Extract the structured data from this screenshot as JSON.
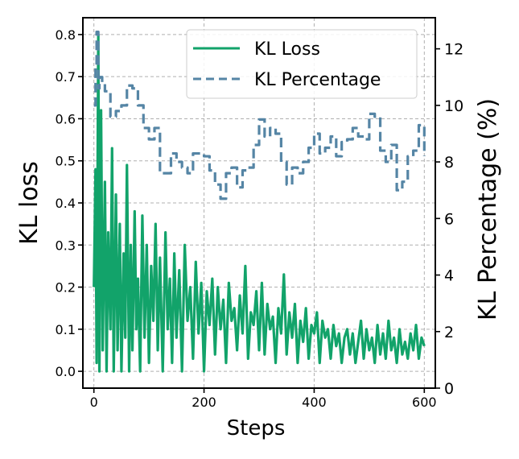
{
  "chart_data": {
    "type": "line",
    "xlabel": "Steps",
    "ylabel": "KL loss",
    "y2label": "KL Percentage (%)",
    "xlim": [
      -20,
      620
    ],
    "ylim": [
      -0.04,
      0.84
    ],
    "y2lim": [
      0,
      13.1
    ],
    "xticks": [
      0,
      200,
      400,
      600
    ],
    "yticks": [
      "0.0",
      "0.1",
      "0.2",
      "0.3",
      "0.4",
      "0.5",
      "0.6",
      "0.7",
      "0.8"
    ],
    "y2ticks": [
      0,
      2,
      4,
      6,
      8,
      10,
      12
    ],
    "grid": true,
    "legend_location": "top-right",
    "series": [
      {
        "name": "KL Loss",
        "axis": "left",
        "color": "#12a36a",
        "style": "solid",
        "x": [
          0,
          3,
          5,
          8,
          10,
          13,
          16,
          20,
          23,
          26,
          30,
          33,
          36,
          40,
          43,
          47,
          50,
          54,
          57,
          60,
          64,
          67,
          70,
          74,
          77,
          80,
          84,
          88,
          92,
          96,
          100,
          104,
          108,
          112,
          116,
          120,
          125,
          130,
          134,
          138,
          142,
          146,
          150,
          155,
          160,
          165,
          170,
          175,
          180,
          185,
          190,
          195,
          200,
          205,
          210,
          215,
          220,
          225,
          230,
          235,
          240,
          245,
          250,
          255,
          260,
          265,
          270,
          275,
          280,
          285,
          290,
          295,
          300,
          305,
          310,
          315,
          320,
          325,
          330,
          335,
          340,
          345,
          350,
          355,
          360,
          365,
          370,
          375,
          380,
          385,
          390,
          395,
          400,
          405,
          410,
          415,
          420,
          425,
          430,
          435,
          440,
          445,
          450,
          455,
          460,
          465,
          470,
          475,
          480,
          485,
          490,
          495,
          500,
          505,
          510,
          515,
          520,
          525,
          530,
          535,
          540,
          545,
          550,
          555,
          560,
          565,
          570,
          575,
          580,
          585,
          590,
          595,
          600
        ],
        "values": [
          0.2,
          0.48,
          0.02,
          0.8,
          0.0,
          0.62,
          0.05,
          0.45,
          0.0,
          0.33,
          0.1,
          0.53,
          0.0,
          0.42,
          0.05,
          0.35,
          0.0,
          0.28,
          0.08,
          0.49,
          0.0,
          0.3,
          0.05,
          0.38,
          0.1,
          0.22,
          0.0,
          0.37,
          0.08,
          0.3,
          0.02,
          0.25,
          0.12,
          0.35,
          0.05,
          0.27,
          0.0,
          0.33,
          0.1,
          0.22,
          0.02,
          0.28,
          0.08,
          0.24,
          0.0,
          0.3,
          0.12,
          0.2,
          0.03,
          0.26,
          0.09,
          0.21,
          0.0,
          0.19,
          0.11,
          0.22,
          0.04,
          0.2,
          0.1,
          0.17,
          0.02,
          0.21,
          0.12,
          0.15,
          0.05,
          0.18,
          0.09,
          0.25,
          0.03,
          0.14,
          0.11,
          0.19,
          0.05,
          0.21,
          0.04,
          0.16,
          0.1,
          0.13,
          0.02,
          0.15,
          0.09,
          0.23,
          0.04,
          0.14,
          0.08,
          0.16,
          0.02,
          0.12,
          0.07,
          0.15,
          0.03,
          0.11,
          0.09,
          0.14,
          0.02,
          0.12,
          0.08,
          0.1,
          0.03,
          0.11,
          0.06,
          0.09,
          0.02,
          0.08,
          0.1,
          0.04,
          0.09,
          0.02,
          0.07,
          0.12,
          0.03,
          0.1,
          0.05,
          0.08,
          0.02,
          0.11,
          0.04,
          0.09,
          0.03,
          0.12,
          0.05,
          0.08,
          0.02,
          0.1,
          0.04,
          0.07,
          0.03,
          0.09,
          0.05,
          0.11,
          0.03,
          0.08,
          0.06
        ]
      },
      {
        "name": "KL Percentage",
        "axis": "right",
        "color": "#5585a5",
        "style": "dashed",
        "x": [
          0,
          3,
          5,
          8,
          10,
          15,
          20,
          30,
          40,
          50,
          60,
          70,
          80,
          90,
          100,
          110,
          120,
          130,
          140,
          150,
          160,
          170,
          180,
          200,
          210,
          220,
          230,
          240,
          250,
          260,
          270,
          280,
          290,
          300,
          310,
          320,
          330,
          340,
          350,
          360,
          370,
          380,
          390,
          400,
          410,
          420,
          430,
          440,
          450,
          460,
          470,
          480,
          490,
          500,
          510,
          520,
          530,
          540,
          550,
          560,
          570,
          580,
          590,
          600
        ],
        "values": [
          10.0,
          11.4,
          12.6,
          10.6,
          11.0,
          10.8,
          10.5,
          9.6,
          9.8,
          10.0,
          10.7,
          10.6,
          10.0,
          9.2,
          8.8,
          9.2,
          7.6,
          7.6,
          8.3,
          8.0,
          7.8,
          7.6,
          8.3,
          8.2,
          7.7,
          7.2,
          6.7,
          7.6,
          7.8,
          7.1,
          7.7,
          7.8,
          8.6,
          9.5,
          8.9,
          9.2,
          9.0,
          8.0,
          7.2,
          7.8,
          7.6,
          8.0,
          8.5,
          9.0,
          8.3,
          8.5,
          8.9,
          8.2,
          8.7,
          8.8,
          9.2,
          8.9,
          8.8,
          9.7,
          9.6,
          8.4,
          8.0,
          8.6,
          7.0,
          7.3,
          8.2,
          8.4,
          9.3,
          8.2
        ]
      }
    ]
  }
}
